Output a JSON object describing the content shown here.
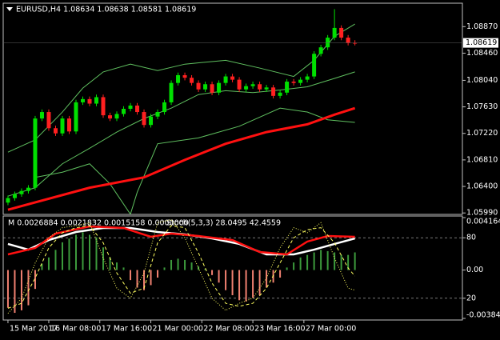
{
  "chart_data": [
    {
      "type": "candlestick",
      "title": "EURUSD,H4  1.08634 1.08638 1.08581 1.08619",
      "up_color": "#00e000",
      "down_color": "#ff2020",
      "xlim": [
        -0.7,
        66.8
      ],
      "ylim": [
        1.0598,
        1.0922
      ],
      "yticks": [
        {
          "value": 1.0887,
          "label": "1.08870"
        },
        {
          "value": 1.0846,
          "label": "1.08460"
        },
        {
          "value": 1.0804,
          "label": "1.08040"
        },
        {
          "value": 1.0763,
          "label": "1.07630"
        },
        {
          "value": 1.0722,
          "label": "1.07220"
        },
        {
          "value": 1.0681,
          "label": "1.06810"
        },
        {
          "value": 1.064,
          "label": "1.06400"
        },
        {
          "value": 1.0599,
          "label": "1.05990"
        }
      ],
      "last_price": 1.08619,
      "open": [
        1.0615,
        1.0622,
        1.0628,
        1.0633,
        1.0638,
        1.0745,
        1.0755,
        1.073,
        1.0722,
        1.0745,
        1.0725,
        1.077,
        1.0775,
        1.0768,
        1.0778,
        1.075,
        1.0745,
        1.0752,
        1.076,
        1.0765,
        1.0755,
        1.0735,
        1.0748,
        1.0755,
        1.077,
        1.08,
        1.0812,
        1.0808,
        1.08,
        1.079,
        1.0798,
        1.0785,
        1.08,
        1.081,
        1.0805,
        1.079,
        1.0795,
        1.0798,
        1.079,
        1.0793,
        1.078,
        1.0785,
        1.0802,
        1.08,
        1.0805,
        1.081,
        1.0845,
        1.0855,
        1.087,
        1.0885,
        1.087,
        1.0862
      ],
      "high": [
        1.0626,
        1.0632,
        1.0637,
        1.0642,
        1.0749,
        1.0759,
        1.0759,
        1.0734,
        1.0749,
        1.0749,
        1.0774,
        1.0779,
        1.0779,
        1.0782,
        1.0782,
        1.0754,
        1.0756,
        1.0764,
        1.0769,
        1.0769,
        1.0759,
        1.0752,
        1.0759,
        1.0774,
        1.0804,
        1.0816,
        1.0816,
        1.0812,
        1.0804,
        1.0802,
        1.0802,
        1.0804,
        1.0814,
        1.0814,
        1.0809,
        1.0799,
        1.0802,
        1.0802,
        1.0797,
        1.0797,
        1.0789,
        1.0806,
        1.0806,
        1.0809,
        1.0814,
        1.0849,
        1.0859,
        1.0874,
        1.0914,
        1.0889,
        1.0874,
        1.0866
      ],
      "low": [
        1.0611,
        1.0618,
        1.0624,
        1.0629,
        1.0634,
        1.0741,
        1.0726,
        1.0718,
        1.0718,
        1.0721,
        1.0721,
        1.0766,
        1.0764,
        1.0764,
        1.0746,
        1.0741,
        1.0741,
        1.0748,
        1.0756,
        1.0751,
        1.0731,
        1.0731,
        1.0744,
        1.0751,
        1.0766,
        1.0796,
        1.0804,
        1.0796,
        1.0786,
        1.0786,
        1.0781,
        1.0781,
        1.0796,
        1.0801,
        1.0786,
        1.0786,
        1.0791,
        1.0786,
        1.0786,
        1.0776,
        1.0776,
        1.0781,
        1.0796,
        1.0796,
        1.0801,
        1.0806,
        1.0841,
        1.0851,
        1.0866,
        1.0866,
        1.0858,
        1.0858
      ],
      "close": [
        1.0622,
        1.0628,
        1.0633,
        1.0638,
        1.0745,
        1.0755,
        1.073,
        1.0722,
        1.0745,
        1.0725,
        1.077,
        1.0775,
        1.0768,
        1.0778,
        1.075,
        1.0745,
        1.0752,
        1.076,
        1.0765,
        1.0755,
        1.0735,
        1.0748,
        1.0755,
        1.077,
        1.08,
        1.0812,
        1.0808,
        1.08,
        1.079,
        1.0798,
        1.0785,
        1.08,
        1.081,
        1.0805,
        1.079,
        1.0795,
        1.0798,
        1.079,
        1.0793,
        1.078,
        1.0785,
        1.0802,
        1.08,
        1.0805,
        1.081,
        1.0845,
        1.0855,
        1.087,
        1.0885,
        1.087,
        1.0862,
        1.08619
      ],
      "series": [
        {
          "color": "#5fbf5f",
          "width": 1,
          "x": [
            0,
            4,
            8,
            11,
            14,
            18,
            22,
            26,
            32,
            37,
            42,
            45,
            48,
            51
          ],
          "values": [
            1.0693,
            1.0712,
            1.0755,
            1.0792,
            1.0817,
            1.0829,
            1.0819,
            1.0829,
            1.0835,
            1.0823,
            1.081,
            1.0835,
            1.0872,
            1.0891
          ]
        },
        {
          "color": "#5fbf5f",
          "width": 1,
          "x": [
            0,
            4,
            8,
            12,
            16,
            20,
            24,
            28,
            32,
            36,
            40,
            44,
            48,
            51
          ],
          "values": [
            1.0625,
            1.0638,
            1.0675,
            1.0699,
            1.0724,
            1.0745,
            1.0761,
            1.0782,
            1.0788,
            1.0785,
            1.0789,
            1.0794,
            1.0807,
            1.0817
          ]
        },
        {
          "color": "#5fbf5f",
          "width": 1,
          "x": [
            4,
            8,
            12,
            15,
            18,
            19,
            22,
            28,
            34,
            40,
            44,
            47,
            51
          ],
          "values": [
            1.0654,
            1.0662,
            1.0675,
            1.0644,
            1.0597,
            1.0631,
            1.0706,
            1.0715,
            1.0733,
            1.0761,
            1.0755,
            1.0743,
            1.0739
          ]
        },
        {
          "color": "#ff1010",
          "width": 3,
          "x": [
            0,
            12,
            20,
            26,
            32,
            38,
            44,
            48,
            51
          ],
          "values": [
            1.0604,
            1.0638,
            1.0654,
            1.0681,
            1.0706,
            1.0724,
            1.0736,
            1.0751,
            1.0761
          ]
        }
      ]
    },
    {
      "type": "oscillator",
      "title": "M 0.0026884 0.0021832 0.0015158 0.0000000",
      "subtitle": "Stoch(5,3,3) 28.0495 42.4559",
      "xlim": [
        -0.7,
        66.8
      ],
      "xticks": [
        {
          "value": 0,
          "label": "15 Mar 2017"
        },
        {
          "value": 6,
          "label": "16 Mar 08:00"
        },
        {
          "value": 13.5,
          "label": "17 Mar 16:00"
        },
        {
          "value": 21,
          "label": "21 Mar 00:00"
        },
        {
          "value": 28.5,
          "label": "22 Mar 08:00"
        },
        {
          "value": 36,
          "label": "23 Mar 16:00"
        },
        {
          "value": 43.5,
          "label": "27 Mar 00:00"
        }
      ],
      "ylim": [
        -0.003842,
        0.004164
      ],
      "yticks": [
        0.004164,
        {
          "value": 0,
          "label": "0.00"
        },
        -0.003842
      ],
      "y2lim": [
        0,
        100
      ],
      "y2ticks": [
        80,
        20
      ],
      "histogram": {
        "pos_color": "#3c9a3c",
        "neg_color": "#f08070",
        "values": [
          -0.003,
          -0.0034,
          -0.0032,
          -0.0028,
          -0.0015,
          0.0005,
          0.001,
          0.0016,
          0.0022,
          0.0025,
          0.0028,
          0.003,
          0.0028,
          0.0026,
          0.0018,
          0.001,
          0.0006,
          0.0002,
          -0.0008,
          -0.0014,
          -0.0016,
          -0.0012,
          -0.0006,
          0.0002,
          0.0008,
          0.0009,
          0.0008,
          0.0006,
          0.0003,
          0.0001,
          -0.0004,
          -0.001,
          -0.0016,
          -0.002,
          -0.0024,
          -0.0025,
          -0.0022,
          -0.002,
          -0.0014,
          -0.001,
          -0.0006,
          0.0002,
          0.0006,
          0.001,
          0.0012,
          0.0014,
          0.0016,
          0.0015,
          0.0014,
          0.0012,
          0.0012,
          0.0014
        ]
      },
      "series": [
        {
          "color": "#ffffff",
          "width": 2.5,
          "axis": "y",
          "x": [
            0,
            3,
            6,
            10,
            14,
            18,
            22,
            26,
            30,
            34,
            38,
            42,
            45,
            48,
            51
          ],
          "values": [
            0.00207,
            0.00162,
            0.00238,
            0.00302,
            0.00334,
            0.00334,
            0.00302,
            0.00283,
            0.00251,
            0.00207,
            0.00124,
            0.00124,
            0.00162,
            0.00207,
            0.00251
          ]
        },
        {
          "color": "#ff1010",
          "width": 2.5,
          "axis": "y",
          "x": [
            0,
            4,
            7,
            12,
            17,
            21,
            24,
            28,
            33,
            37,
            41,
            44,
            47,
            51
          ],
          "values": [
            0.00124,
            0.00175,
            0.00289,
            0.00346,
            0.00334,
            0.00264,
            0.00289,
            0.0027,
            0.00238,
            0.00143,
            0.00124,
            0.00226,
            0.0027,
            0.00264
          ]
        },
        {
          "color": "#ffff60",
          "width": 1,
          "dash": "1 2",
          "axis": "y2",
          "x": [
            0,
            2,
            4,
            6,
            8,
            10,
            12,
            14,
            16,
            18,
            20,
            22,
            24,
            26,
            28,
            30,
            32,
            34,
            36,
            38,
            40,
            42,
            44,
            46,
            48,
            50,
            51
          ],
          "values": [
            5,
            20,
            55,
            80,
            90,
            92,
            95,
            60,
            30,
            20,
            45,
            95,
            98,
            80,
            50,
            20,
            8,
            15,
            20,
            40,
            70,
            90,
            85,
            95,
            60,
            30,
            28
          ]
        },
        {
          "color": "#ffff60",
          "width": 1,
          "dash": "4 3",
          "axis": "y2",
          "x": [
            0,
            2,
            4,
            6,
            8,
            10,
            12,
            14,
            16,
            18,
            20,
            22,
            24,
            26,
            28,
            30,
            32,
            34,
            36,
            38,
            40,
            42,
            44,
            46,
            48,
            50,
            51
          ],
          "values": [
            10,
            15,
            40,
            70,
            85,
            90,
            92,
            75,
            45,
            25,
            30,
            75,
            92,
            90,
            65,
            35,
            15,
            12,
            15,
            30,
            55,
            80,
            88,
            90,
            75,
            50,
            42
          ]
        }
      ]
    }
  ]
}
